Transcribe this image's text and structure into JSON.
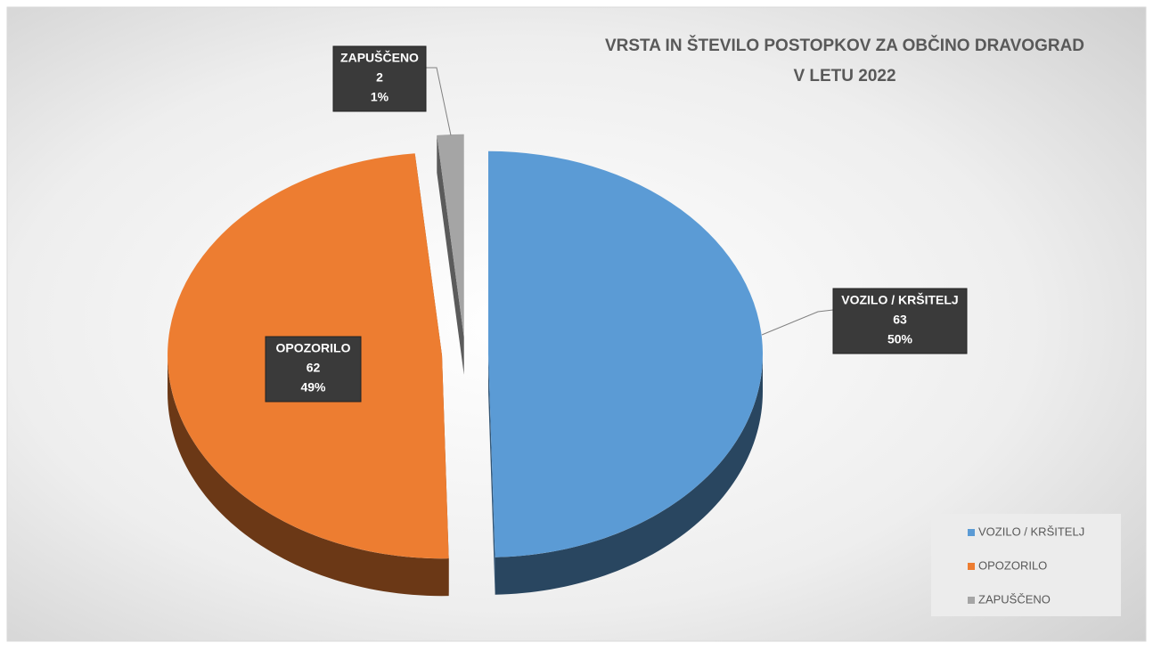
{
  "chart_data": {
    "type": "pie3d",
    "title": [
      "VRSTA IN ŠTEVILO POSTOPKOV ZA OBČINO DRAVOGRAD",
      "V LETU 2022"
    ],
    "categories": [
      "VOZILO / KRŠITELJ",
      "OPOZORILO",
      "ZAPUŠČENO"
    ],
    "values": [
      63,
      62,
      2
    ],
    "percent_labels": [
      "50%",
      "49%",
      "1%"
    ],
    "colors": [
      "#5b9bd5",
      "#ed7d31",
      "#a5a5a5"
    ],
    "legend": "bottom-right"
  }
}
